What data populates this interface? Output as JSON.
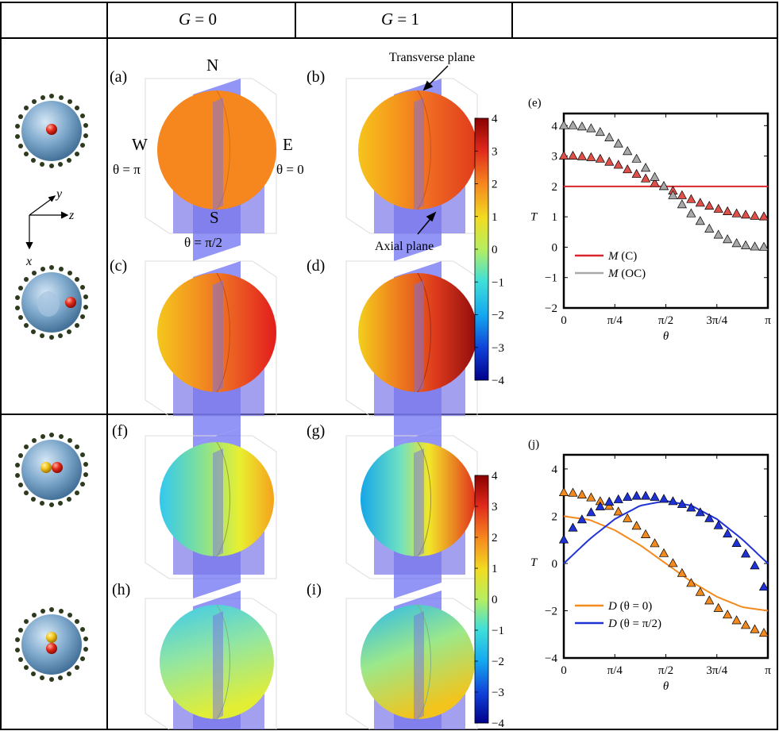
{
  "header": {
    "col1": "G = 0",
    "col1_var": "G",
    "col1_rest": " = 0",
    "col2": "G = 1",
    "col2_var": "G",
    "col2_rest": " = 1"
  },
  "panel_labels": {
    "a": "(a)",
    "b": "(b)",
    "c": "(c)",
    "d": "(d)",
    "e": "(e)",
    "f": "(f)",
    "g": "(g)",
    "h": "(h)",
    "i": "(i)",
    "j": "(j)"
  },
  "annotations": {
    "north": "N",
    "south": "S",
    "west": "W",
    "east": "E",
    "theta_pi": "θ = π",
    "theta_0": "θ = 0",
    "theta_half_pi": "θ = π/2",
    "transverse_plane": "Transverse plane",
    "axial_plane": "Axial plane"
  },
  "axes_glyph": {
    "y": "y",
    "z": "z",
    "x": "x"
  },
  "colorbar": {
    "ticks": [
      "4",
      "3",
      "2",
      "1",
      "0",
      "−1",
      "−2",
      "−3",
      "−4"
    ]
  },
  "chart_data": [
    {
      "type": "line",
      "panel": "(e)",
      "xlabel": "θ",
      "ylabel": "T",
      "xticks": [
        "0",
        "π/4",
        "π/2",
        "3π/4",
        "π"
      ],
      "yticks": [
        "4",
        "3",
        "2",
        "1",
        "0",
        "−1",
        "−2"
      ],
      "xlim": [
        0,
        3.1416
      ],
      "ylim": [
        -2,
        4.4
      ],
      "legend": "bottom-left",
      "series": [
        {
          "name": "M (C)",
          "kind": "line",
          "color": "#d9262e",
          "x": [
            0,
            3.1416
          ],
          "y": [
            2,
            2
          ]
        },
        {
          "kind": "markers",
          "color": "#e0504a",
          "x": [
            0.0,
            0.14,
            0.28,
            0.42,
            0.56,
            0.7,
            0.84,
            0.98,
            1.12,
            1.26,
            1.4,
            1.54,
            1.68,
            1.82,
            1.96,
            2.1,
            2.24,
            2.38,
            2.52,
            2.66,
            2.8,
            2.94,
            3.08
          ],
          "y": [
            3.0,
            3.0,
            2.98,
            2.95,
            2.9,
            2.8,
            2.7,
            2.55,
            2.4,
            2.25,
            2.1,
            2.0,
            1.85,
            1.7,
            1.57,
            1.45,
            1.35,
            1.25,
            1.17,
            1.1,
            1.06,
            1.02,
            1.0
          ]
        },
        {
          "name": "M (OC)",
          "kind": "markers",
          "color": "#a9a9a9",
          "x": [
            0.0,
            0.14,
            0.28,
            0.42,
            0.56,
            0.7,
            0.84,
            0.98,
            1.12,
            1.26,
            1.4,
            1.54,
            1.68,
            1.82,
            1.96,
            2.1,
            2.24,
            2.38,
            2.52,
            2.66,
            2.8,
            2.94,
            3.08
          ],
          "y": [
            4.0,
            4.0,
            3.96,
            3.9,
            3.78,
            3.6,
            3.4,
            3.15,
            2.9,
            2.6,
            2.3,
            2.0,
            1.7,
            1.4,
            1.1,
            0.85,
            0.6,
            0.4,
            0.25,
            0.12,
            0.05,
            0.01,
            0.0
          ]
        }
      ]
    },
    {
      "type": "line",
      "panel": "(j)",
      "xlabel": "θ",
      "ylabel": "T",
      "xticks": [
        "0",
        "π/4",
        "π/2",
        "3π/4",
        "π"
      ],
      "yticks": [
        "4",
        "2",
        "0",
        "−2",
        "−4"
      ],
      "xlim": [
        0,
        3.1416
      ],
      "ylim": [
        -4,
        4.6
      ],
      "legend": "bottom-left",
      "series": [
        {
          "name": "D (θ = 0)",
          "kind": "line",
          "color": "#f28a1e",
          "x": [
            0,
            0.3927,
            0.7854,
            1.1781,
            1.5708,
            1.9635,
            2.3562,
            2.7489,
            3.1416
          ],
          "y": [
            2.0,
            1.85,
            1.41,
            0.77,
            0.0,
            -0.77,
            -1.41,
            -1.85,
            -2.0
          ]
        },
        {
          "kind": "markers",
          "color": "#f28a1e",
          "x": [
            0.0,
            0.14,
            0.28,
            0.42,
            0.56,
            0.7,
            0.84,
            0.98,
            1.12,
            1.26,
            1.4,
            1.54,
            1.68,
            1.82,
            1.96,
            2.1,
            2.24,
            2.38,
            2.52,
            2.66,
            2.8,
            2.94,
            3.08
          ],
          "y": [
            3.0,
            2.98,
            2.9,
            2.78,
            2.62,
            2.42,
            2.18,
            1.9,
            1.58,
            1.22,
            0.84,
            0.42,
            0.0,
            -0.42,
            -0.84,
            -1.22,
            -1.58,
            -1.9,
            -2.18,
            -2.42,
            -2.62,
            -2.8,
            -2.95
          ]
        },
        {
          "name": "D (θ = π/2)",
          "kind": "line",
          "color": "#1f32d6",
          "x": [
            0,
            0.3927,
            0.7854,
            1.1781,
            1.5708,
            1.9635,
            2.3562,
            2.7489,
            3.1416
          ],
          "y": [
            0.0,
            1.02,
            1.88,
            2.45,
            2.65,
            2.45,
            1.88,
            1.02,
            0.0
          ]
        },
        {
          "kind": "markers",
          "color": "#1f32d6",
          "x": [
            0.0,
            0.14,
            0.28,
            0.42,
            0.56,
            0.7,
            0.84,
            0.98,
            1.12,
            1.26,
            1.4,
            1.54,
            1.68,
            1.82,
            1.96,
            2.1,
            2.24,
            2.38,
            2.52,
            2.66,
            2.8,
            2.94,
            3.08
          ],
          "y": [
            1.0,
            1.5,
            1.85,
            2.15,
            2.4,
            2.6,
            2.7,
            2.8,
            2.85,
            2.85,
            2.8,
            2.72,
            2.62,
            2.5,
            2.35,
            2.15,
            1.9,
            1.6,
            1.25,
            0.85,
            0.4,
            -0.1,
            -1.0
          ]
        }
      ]
    }
  ]
}
